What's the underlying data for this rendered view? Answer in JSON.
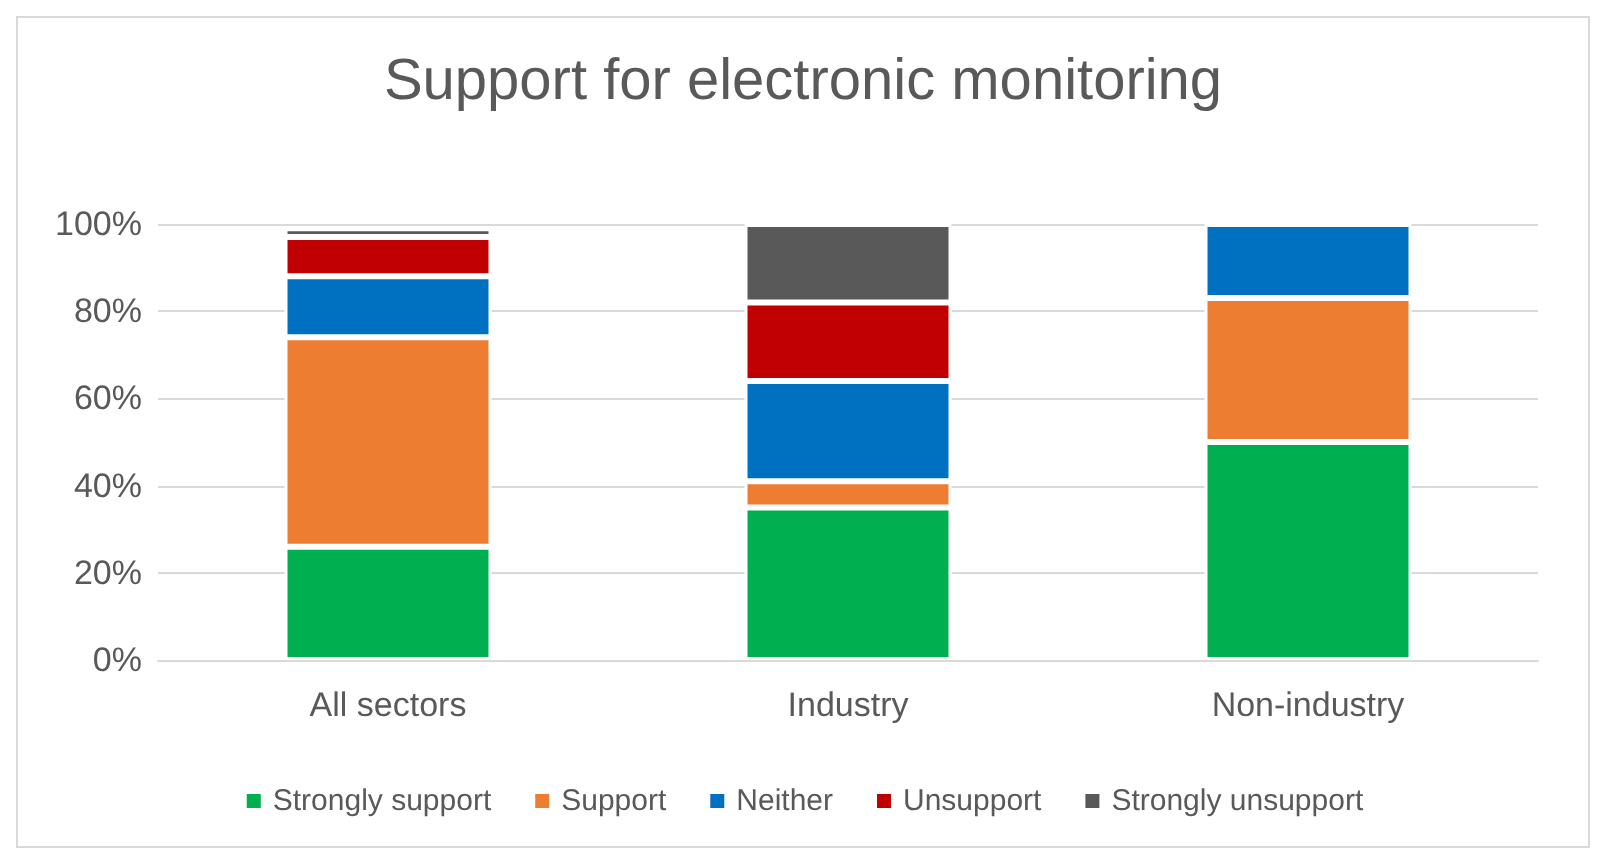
{
  "chart_data": {
    "type": "bar",
    "stacked": true,
    "title": "Support for electronic monitoring",
    "categories": [
      "All sectors",
      "Industry",
      "Non-industry"
    ],
    "series": [
      {
        "name": "Strongly support",
        "color": "#00b050",
        "values": [
          26,
          35,
          50
        ]
      },
      {
        "name": "Support",
        "color": "#ed7d31",
        "values": [
          48,
          6,
          33
        ]
      },
      {
        "name": "Neither",
        "color": "#0070c0",
        "values": [
          14,
          23,
          17
        ]
      },
      {
        "name": "Unsupport",
        "color": "#c00000",
        "values": [
          9,
          18,
          0
        ]
      },
      {
        "name": "Strongly unsupport",
        "color": "#595959",
        "values": [
          2,
          18,
          0
        ]
      }
    ],
    "ylim": [
      0,
      100
    ],
    "yticks": [
      {
        "value": 0,
        "label": "0%"
      },
      {
        "value": 20,
        "label": "20%"
      },
      {
        "value": 40,
        "label": "40%"
      },
      {
        "value": 60,
        "label": "60%"
      },
      {
        "value": 80,
        "label": "80%"
      },
      {
        "value": 100,
        "label": "100%"
      }
    ],
    "grid": "y",
    "legend": "bottom"
  }
}
